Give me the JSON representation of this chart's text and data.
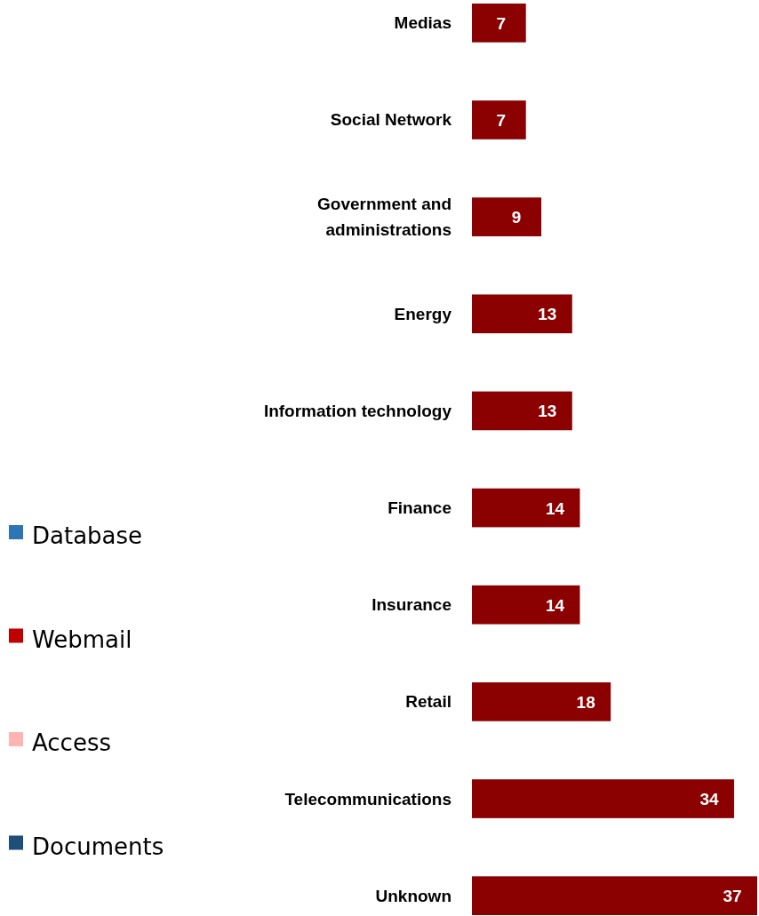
{
  "chart_data": [
    {
      "type": "bar",
      "orientation": "horizontal",
      "categories": [
        "Medias",
        "Social Network",
        "Government and administrations",
        "Energy",
        "Information technology",
        "Finance",
        "Insurance",
        "Retail",
        "Telecommunications",
        "Unknown"
      ],
      "values": [
        7,
        7,
        9,
        13,
        13,
        14,
        14,
        18,
        34,
        37
      ],
      "color": "#8b0000",
      "data_labels": true
    },
    {
      "type": "other",
      "annotations": [
        "Database",
        "Webmail",
        "Access",
        "Documents"
      ],
      "colors": [
        "#2e75b6",
        "#c00000",
        "#ffb3b3",
        "#1f4e79"
      ]
    }
  ]
}
